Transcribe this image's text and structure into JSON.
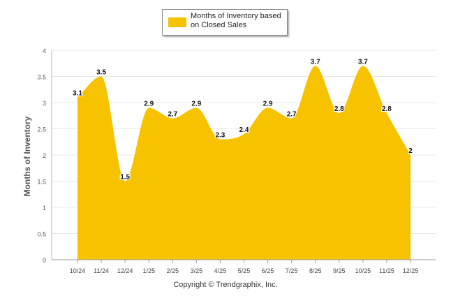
{
  "legend": {
    "label": "Months of Inventory based on Closed Sales"
  },
  "copyright": "Copyright © Trendgraphix, Inc.",
  "colors": {
    "fill": "#F7C300",
    "grid": "#e8e8e8",
    "axis": "#bbbbbb"
  },
  "chart_data": {
    "type": "area",
    "title": "",
    "xlabel": "",
    "ylabel": "Months of Inventory",
    "ylim": [
      0,
      4
    ],
    "yticks": [
      0,
      0.5,
      1,
      1.5,
      2,
      2.5,
      3,
      3.5,
      4
    ],
    "categories": [
      "10/24",
      "11/24",
      "12/24",
      "1/25",
      "2/25",
      "3/25",
      "4/25",
      "5/25",
      "6/25",
      "7/25",
      "8/25",
      "9/25",
      "10/25",
      "11/25",
      "12/25"
    ],
    "series": [
      {
        "name": "Months of Inventory based on Closed Sales",
        "values": [
          3.1,
          3.5,
          1.5,
          2.9,
          2.7,
          2.9,
          2.3,
          2.4,
          2.9,
          2.7,
          3.7,
          2.8,
          3.7,
          2.8,
          2
        ]
      }
    ],
    "legend_position": "top-center",
    "grid": true
  }
}
